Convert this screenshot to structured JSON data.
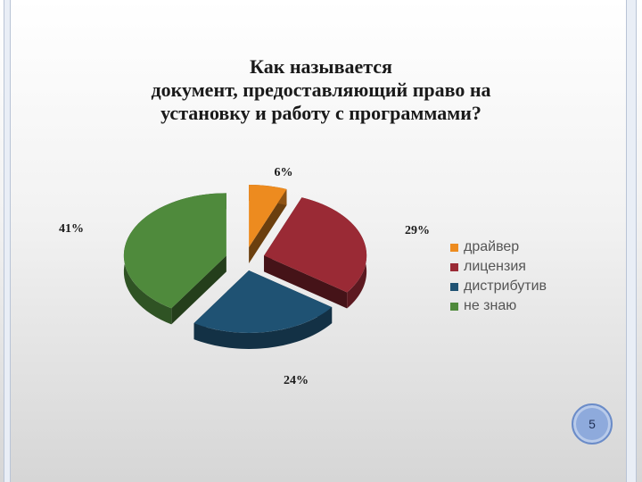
{
  "title_lines": [
    "Как называется",
    "документ, предоставляющий право на",
    "установку и работу с программами?"
  ],
  "slide_number": "5",
  "colors": {
    "orange": "#ed8b1f",
    "red": "#9a2a35",
    "blue": "#1f5273",
    "green": "#4f8a3c"
  },
  "chart_data": {
    "type": "pie",
    "exploded_3d": true,
    "title": "Как называется документ, предоставляющий право на установку и работу с программами?",
    "slices": [
      {
        "name": "драйвер",
        "value": 6,
        "label": "6%",
        "color": "#ed8b1f"
      },
      {
        "name": "лицензия",
        "value": 29,
        "label": "29%",
        "color": "#9a2a35"
      },
      {
        "name": "дистрибутив",
        "value": 24,
        "label": "24%",
        "color": "#1f5273"
      },
      {
        "name": "не знаю",
        "value": 41,
        "label": "41%",
        "color": "#4f8a3c"
      }
    ],
    "legend_position": "right"
  }
}
